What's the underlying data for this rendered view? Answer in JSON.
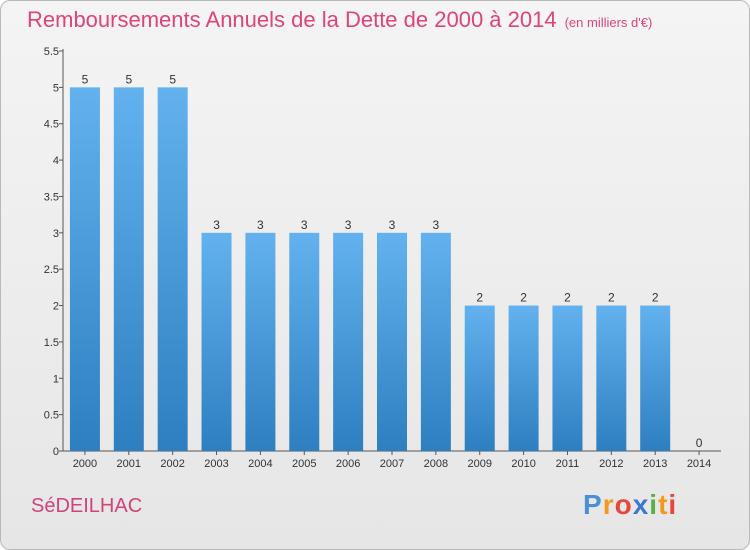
{
  "header": {
    "title": "Remboursements Annuels de la Dette de 2000 à 2014",
    "unit": "(en milliers d'€)"
  },
  "footer": {
    "city": "SéDEILHAC",
    "logo": [
      "P",
      "r",
      "o",
      "x",
      "i",
      "t",
      "i"
    ]
  },
  "colors": {
    "bar_top": "#63b2ef",
    "bar_bottom": "#2e7fc0",
    "title": "#dd4477"
  },
  "chart_data": {
    "type": "bar",
    "categories": [
      "2000",
      "2001",
      "2002",
      "2003",
      "2004",
      "2005",
      "2006",
      "2007",
      "2008",
      "2009",
      "2010",
      "2011",
      "2012",
      "2013",
      "2014"
    ],
    "values": [
      5,
      5,
      5,
      3,
      3,
      3,
      3,
      3,
      3,
      2,
      2,
      2,
      2,
      2,
      0
    ],
    "data_labels": [
      "5",
      "5",
      "5",
      "3",
      "3",
      "3",
      "3",
      "3",
      "3",
      "2",
      "2",
      "2",
      "2",
      "2",
      "0"
    ],
    "yticks": [
      "0",
      "0.5",
      "1",
      "1.5",
      "2",
      "2.5",
      "3",
      "3.5",
      "4",
      "4.5",
      "5",
      "5.5"
    ],
    "ylim": [
      0,
      5.5
    ],
    "grid": false,
    "legend": "none"
  }
}
